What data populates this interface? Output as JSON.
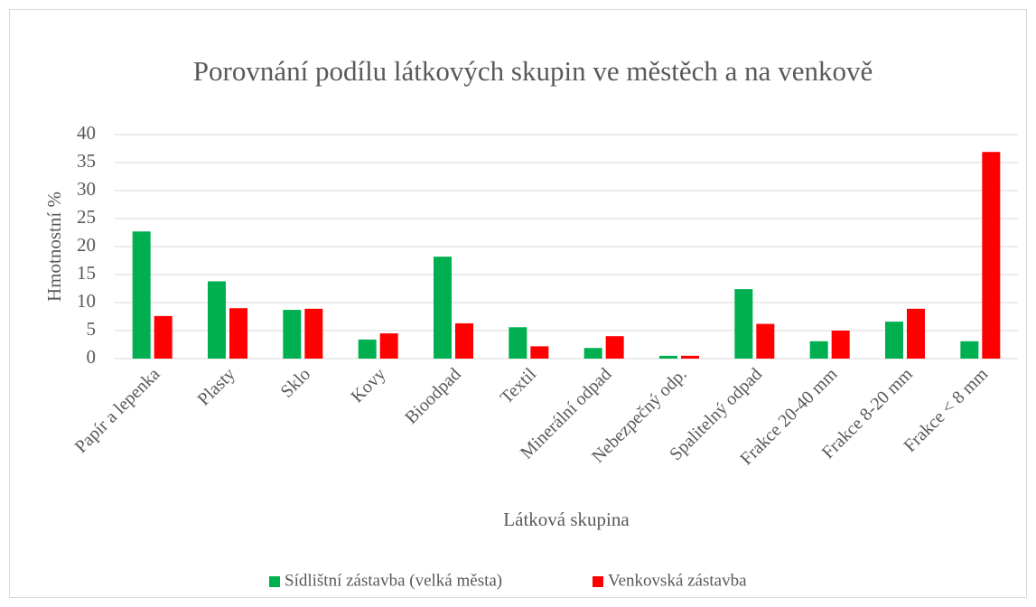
{
  "chart_data": {
    "type": "bar",
    "title": "Porovnání podílu látkových skupin ve městěch a na venkově",
    "x_label": "Látková skupina",
    "y_label": "Hmotnostní %",
    "categories": [
      "Papír a lepenka",
      "Plasty",
      "Sklo",
      "Kovy",
      "Bioodpad",
      "Textil",
      "Minerální odpad",
      "Nebezpečný odp.",
      "Spalitelný odpad",
      "Frakce 20-40 mm",
      "Frakce 8-20 mm",
      "Frakce < 8 mm"
    ],
    "series": [
      {
        "name": "Sídlištní zástavba (velká města)",
        "color": "#00b050",
        "values": [
          22.7,
          13.8,
          8.7,
          3.4,
          18.2,
          5.6,
          1.9,
          0.5,
          12.4,
          3.1,
          6.6,
          3.1
        ]
      },
      {
        "name": "Venkovská zástavba",
        "color": "#ff0000",
        "values": [
          7.6,
          9.0,
          8.9,
          4.5,
          6.3,
          2.2,
          4.0,
          0.5,
          6.2,
          5.0,
          8.9,
          36.9
        ]
      }
    ],
    "ylim": [
      0,
      40
    ],
    "yticks": [
      0,
      5,
      10,
      15,
      20,
      25,
      30,
      35,
      40
    ],
    "grid": true,
    "legend": "bottom"
  }
}
